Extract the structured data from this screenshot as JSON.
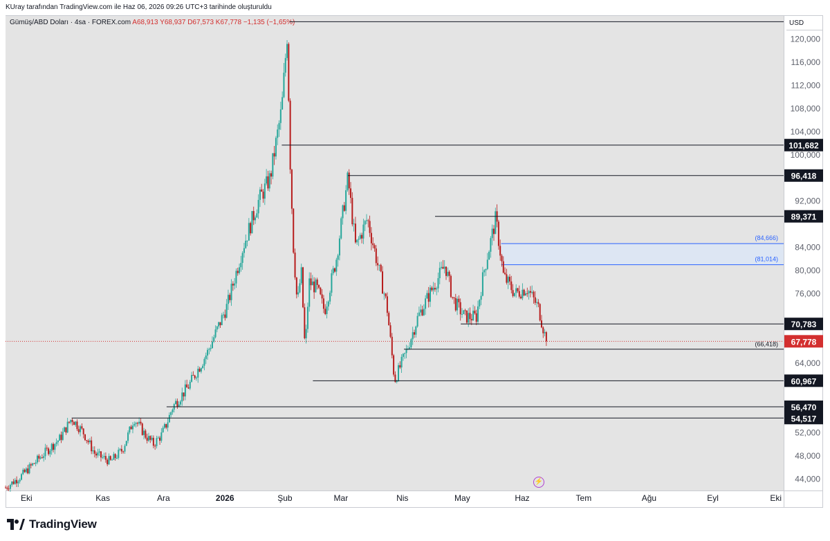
{
  "header": {
    "created_text": "KUray tarafından TradingView.com ile Haz 06, 2026 09:26 UTC+3 tarihinde oluşturuldu"
  },
  "legend": {
    "symbol": "Gümüş/ABD Doları · 4sa · FOREX.com",
    "open": "A68,913",
    "high": "Y68,937",
    "low": "D67,573",
    "close": "K67,778",
    "change": "−1,135 (−1,65%)"
  },
  "currency": "USD",
  "footer": {
    "brand": "TradingView"
  },
  "colors": {
    "up": "#26a69a",
    "down": "#b71c1c",
    "background": "#e4e4e4",
    "level_line": "#131722",
    "box_fill": "#dde6f3",
    "box_edge": "#2962ff",
    "last_price": "#d32f2f",
    "label_bg": "#131722",
    "brand_icon": "#b03fd0"
  },
  "chart_data": {
    "type": "candlestick",
    "title": "Gümüş/ABD Doları · 4sa · FOREX.com",
    "ylim": [
      42000,
      124000
    ],
    "y_ticks": [
      "44,000",
      "48,000",
      "52,000",
      "56,000",
      "60,000",
      "64,000",
      "68,000",
      "72,000",
      "76,000",
      "80,000",
      "84,000",
      "88,000",
      "92,000",
      "96,000",
      "100,000",
      "104,000",
      "108,000",
      "112,000",
      "116,000",
      "120,000"
    ],
    "x_ticks": [
      {
        "label": "Eki",
        "t": 0.027
      },
      {
        "label": "Kas",
        "t": 0.125
      },
      {
        "label": "Ara",
        "t": 0.203
      },
      {
        "label": "2026",
        "t": 0.282,
        "bold": true
      },
      {
        "label": "Şub",
        "t": 0.359
      },
      {
        "label": "Mar",
        "t": 0.431
      },
      {
        "label": "Nis",
        "t": 0.51
      },
      {
        "label": "May",
        "t": 0.587
      },
      {
        "label": "Haz",
        "t": 0.664
      },
      {
        "label": "Tem",
        "t": 0.743
      },
      {
        "label": "Ağu",
        "t": 0.827
      },
      {
        "label": "Eyl",
        "t": 0.909
      },
      {
        "label": "Eki",
        "t": 0.99
      }
    ],
    "price_path": [
      [
        0.0,
        42500
      ],
      [
        0.02,
        44500
      ],
      [
        0.045,
        47800
      ],
      [
        0.07,
        51000
      ],
      [
        0.085,
        54500
      ],
      [
        0.1,
        52000
      ],
      [
        0.115,
        48300
      ],
      [
        0.135,
        47000
      ],
      [
        0.15,
        49000
      ],
      [
        0.16,
        52500
      ],
      [
        0.165,
        54500
      ],
      [
        0.18,
        51500
      ],
      [
        0.19,
        50000
      ],
      [
        0.2,
        51500
      ],
      [
        0.207,
        53500
      ],
      [
        0.215,
        56500
      ],
      [
        0.235,
        60000
      ],
      [
        0.26,
        66000
      ],
      [
        0.285,
        74000
      ],
      [
        0.305,
        84000
      ],
      [
        0.325,
        92000
      ],
      [
        0.34,
        96000
      ],
      [
        0.355,
        108000
      ],
      [
        0.362,
        121000
      ],
      [
        0.366,
        98000
      ],
      [
        0.37,
        84000
      ],
      [
        0.375,
        74000
      ],
      [
        0.38,
        80000
      ],
      [
        0.385,
        66000
      ],
      [
        0.39,
        78000
      ],
      [
        0.4,
        77000
      ],
      [
        0.41,
        73000
      ],
      [
        0.425,
        82000
      ],
      [
        0.44,
        96000
      ],
      [
        0.45,
        84000
      ],
      [
        0.465,
        89000
      ],
      [
        0.48,
        80000
      ],
      [
        0.49,
        74000
      ],
      [
        0.5,
        61000
      ],
      [
        0.515,
        66000
      ],
      [
        0.53,
        72000
      ],
      [
        0.545,
        76000
      ],
      [
        0.565,
        81000
      ],
      [
        0.575,
        75000
      ],
      [
        0.59,
        72000
      ],
      [
        0.605,
        72000
      ],
      [
        0.615,
        80000
      ],
      [
        0.63,
        89000
      ],
      [
        0.64,
        79000
      ],
      [
        0.655,
        76000
      ],
      [
        0.67,
        77000
      ],
      [
        0.685,
        73500
      ],
      [
        0.695,
        67800
      ]
    ],
    "levels": [
      {
        "value": 123000,
        "label": "",
        "t0": 0.365
      },
      {
        "value": 101682,
        "label": "101,682",
        "t0": 0.355
      },
      {
        "value": 96418,
        "label": "96,418",
        "t0": 0.44
      },
      {
        "value": 89371,
        "label": "89,371",
        "t0": 0.552
      },
      {
        "value": 70783,
        "label": "70,783",
        "t0": 0.585
      },
      {
        "value": 66418,
        "label": "(66,418)",
        "t0": 0.512,
        "plain": true
      },
      {
        "value": 60967,
        "label": "60,967",
        "t0": 0.395
      },
      {
        "value": 56470,
        "label": "56,470",
        "t0": 0.207
      },
      {
        "value": 54517,
        "label": "54,517",
        "t0": 0.085
      }
    ],
    "zone": {
      "top": 84666,
      "bottom": 81014,
      "top_label": "(84,666)",
      "bottom_label": "(81,014)",
      "t0": 0.637
    },
    "last_price": {
      "value": 67778,
      "label": "67,778",
      "t": 0.695
    }
  }
}
